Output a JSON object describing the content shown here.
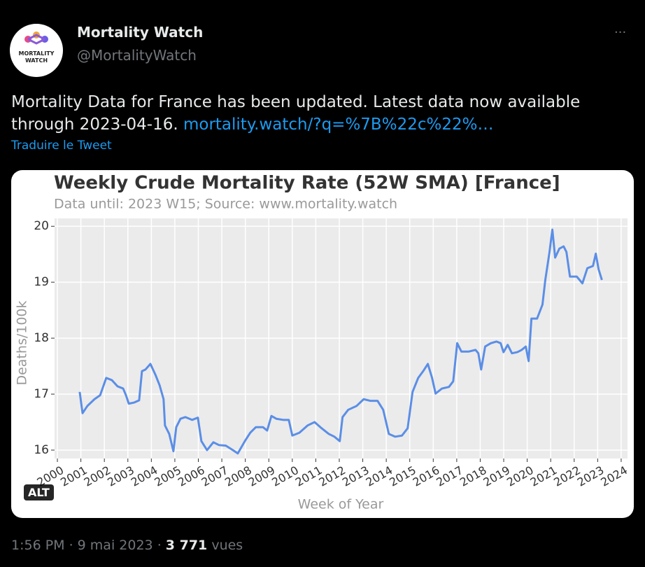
{
  "tweet": {
    "avatar_text": [
      "MORTALITY",
      "WATCH"
    ],
    "name": "Mortality Watch",
    "handle": "@MortalityWatch",
    "more": "···",
    "text": "Mortality Data for France has been updated. Latest data now available through 2023-04-16.",
    "link": "mortality.watch/?q=%7B%22c%22%…",
    "translate": "Traduire le Tweet",
    "alt_badge": "ALT",
    "timestamp": "1:56 PM · 9 mai 2023",
    "separator": "·",
    "views": "3 771",
    "views_label": "vues"
  },
  "chart_data": {
    "type": "line",
    "title": "Weekly Crude Mortality Rate (52W SMA) [France]",
    "subtitle": "Data until: 2023 W15; Source: www.mortality.watch",
    "x_label": "Week of Year",
    "y_label": "Deaths/100k",
    "xlim": [
      1999.88,
      2024.27
    ],
    "ylim": [
      15.85,
      20.14
    ],
    "xticks": [
      2000,
      2001,
      2002,
      2003,
      2004,
      2005,
      2006,
      2007,
      2008,
      2009,
      2010,
      2011,
      2012,
      2013,
      2014,
      2015,
      2016,
      2017,
      2018,
      2019,
      2020,
      2021,
      2022,
      2023,
      2024
    ],
    "yticks": [
      16,
      17,
      18,
      19,
      20
    ],
    "grid": true,
    "series": [
      {
        "name": "France",
        "color": "#5b8ee6",
        "x": [
          2000.95,
          2001.07,
          2001.28,
          2001.58,
          2001.82,
          2002.08,
          2002.32,
          2002.56,
          2002.8,
          2002.92,
          2003.04,
          2003.27,
          2003.48,
          2003.6,
          2003.75,
          2003.96,
          2004.17,
          2004.35,
          2004.52,
          2004.58,
          2004.76,
          2004.94,
          2005.06,
          2005.24,
          2005.45,
          2005.74,
          2005.98,
          2006.13,
          2006.37,
          2006.64,
          2006.88,
          2007.17,
          2007.47,
          2007.68,
          2007.98,
          2008.21,
          2008.45,
          2008.75,
          2008.93,
          2009.11,
          2009.32,
          2009.61,
          2009.85,
          2010.0,
          2010.3,
          2010.65,
          2010.95,
          2011.25,
          2011.55,
          2011.79,
          2012.02,
          2012.14,
          2012.38,
          2012.74,
          2013.04,
          2013.33,
          2013.63,
          2013.87,
          2014.11,
          2014.38,
          2014.67,
          2014.91,
          2015.12,
          2015.36,
          2015.57,
          2015.77,
          2015.95,
          2016.1,
          2016.37,
          2016.67,
          2016.85,
          2017.02,
          2017.2,
          2017.5,
          2017.8,
          2017.92,
          2018.04,
          2018.21,
          2018.45,
          2018.69,
          2018.87,
          2018.99,
          2019.17,
          2019.35,
          2019.58,
          2019.76,
          2019.94,
          2020.06,
          2020.18,
          2020.42,
          2020.65,
          2020.77,
          2020.95,
          2021.07,
          2021.19,
          2021.37,
          2021.55,
          2021.67,
          2021.82,
          2022.11,
          2022.35,
          2022.56,
          2022.8,
          2022.92,
          2023.04,
          2023.18
        ],
        "values": [
          17.04,
          16.66,
          16.79,
          16.91,
          16.98,
          17.29,
          17.25,
          17.14,
          17.1,
          16.98,
          16.83,
          16.85,
          16.89,
          17.41,
          17.44,
          17.54,
          17.35,
          17.16,
          16.91,
          16.44,
          16.29,
          15.98,
          16.41,
          16.56,
          16.59,
          16.54,
          16.58,
          16.16,
          16.0,
          16.14,
          16.09,
          16.08,
          16.0,
          15.94,
          16.16,
          16.31,
          16.41,
          16.41,
          16.35,
          16.61,
          16.56,
          16.54,
          16.54,
          16.26,
          16.31,
          16.44,
          16.5,
          16.39,
          16.29,
          16.24,
          16.16,
          16.59,
          16.72,
          16.79,
          16.91,
          16.88,
          16.88,
          16.72,
          16.29,
          16.24,
          16.26,
          16.39,
          17.04,
          17.29,
          17.41,
          17.54,
          17.29,
          17.01,
          17.1,
          17.13,
          17.23,
          17.91,
          17.76,
          17.76,
          17.79,
          17.73,
          17.44,
          17.85,
          17.91,
          17.94,
          17.91,
          17.75,
          17.88,
          17.73,
          17.75,
          17.79,
          17.85,
          17.59,
          18.35,
          18.35,
          18.6,
          19.04,
          19.54,
          19.94,
          19.44,
          19.6,
          19.64,
          19.54,
          19.1,
          19.1,
          18.98,
          19.25,
          19.29,
          19.51,
          19.23,
          19.04
        ]
      }
    ]
  }
}
